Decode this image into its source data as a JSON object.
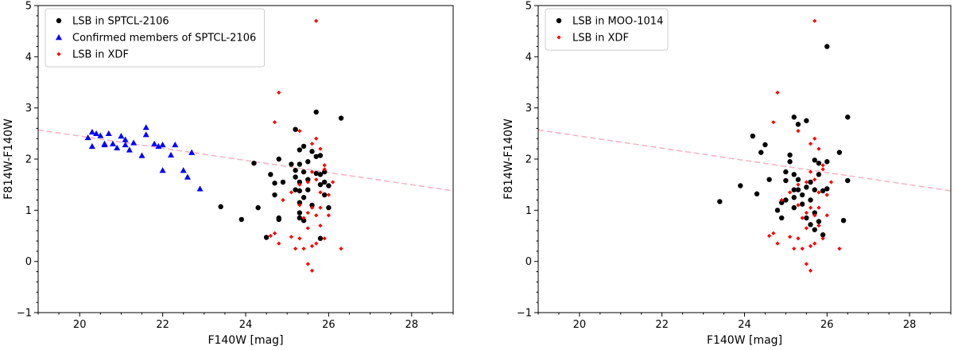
{
  "chart_data": [
    {
      "type": "scatter",
      "xlabel": "F140W [mag]",
      "ylabel": "F814W-F140W",
      "xlim": [
        19,
        29
      ],
      "ylim": [
        -1,
        5
      ],
      "xticks": [
        20,
        22,
        24,
        26,
        28
      ],
      "yticks": [
        -1,
        0,
        1,
        2,
        3,
        4,
        5
      ],
      "legend_position": "top-left",
      "reference_line": {
        "x": [
          19,
          29
        ],
        "y": [
          2.57,
          1.38
        ],
        "color": "#f4b6c2",
        "style": "dashed"
      },
      "series": [
        {
          "name": "LSB in SPTCL-2106",
          "marker": "circle",
          "color": "#000000",
          "points": [
            [
              23.4,
              1.07
            ],
            [
              23.9,
              0.82
            ],
            [
              24.2,
              1.92
            ],
            [
              24.3,
              1.05
            ],
            [
              24.5,
              0.47
            ],
            [
              24.6,
              1.7
            ],
            [
              24.7,
              1.53
            ],
            [
              24.7,
              1.3
            ],
            [
              24.8,
              0.85
            ],
            [
              24.8,
              0.82
            ],
            [
              24.8,
              2.0
            ],
            [
              24.9,
              1.55
            ],
            [
              25.1,
              1.9
            ],
            [
              25.2,
              2.58
            ],
            [
              25.2,
              1.78
            ],
            [
              25.2,
              1.65
            ],
            [
              25.2,
              1.4
            ],
            [
              25.3,
              2.18
            ],
            [
              25.3,
              1.9
            ],
            [
              25.3,
              1.55
            ],
            [
              25.3,
              1.38
            ],
            [
              25.3,
              1.15
            ],
            [
              25.3,
              0.95
            ],
            [
              25.3,
              0.85
            ],
            [
              25.4,
              2.25
            ],
            [
              25.4,
              1.75
            ],
            [
              25.4,
              1.25
            ],
            [
              25.5,
              1.95
            ],
            [
              25.5,
              1.6
            ],
            [
              25.5,
              1.4
            ],
            [
              25.6,
              2.15
            ],
            [
              25.6,
              1.1
            ],
            [
              25.7,
              2.92
            ],
            [
              25.7,
              2.05
            ],
            [
              25.7,
              1.72
            ],
            [
              25.8,
              2.07
            ],
            [
              25.8,
              1.7
            ],
            [
              25.8,
              1.5
            ],
            [
              25.8,
              0.45
            ],
            [
              25.9,
              1.75
            ],
            [
              25.9,
              1.55
            ],
            [
              26.0,
              1.05
            ],
            [
              26.0,
              1.48
            ],
            [
              26.3,
              2.8
            ],
            [
              25.4,
              0.8
            ],
            [
              25.9,
              1.3
            ]
          ]
        },
        {
          "name": "Confirmed members of SPTCL-2106",
          "marker": "triangle",
          "color": "#0000ff",
          "points": [
            [
              20.2,
              2.42
            ],
            [
              20.3,
              2.53
            ],
            [
              20.3,
              2.25
            ],
            [
              20.4,
              2.5
            ],
            [
              20.5,
              2.46
            ],
            [
              20.6,
              2.3
            ],
            [
              20.6,
              2.28
            ],
            [
              20.7,
              2.5
            ],
            [
              20.8,
              2.3
            ],
            [
              20.9,
              2.22
            ],
            [
              21.0,
              2.45
            ],
            [
              21.1,
              2.38
            ],
            [
              21.1,
              2.28
            ],
            [
              21.2,
              2.18
            ],
            [
              21.3,
              2.32
            ],
            [
              21.5,
              2.07
            ],
            [
              21.6,
              2.62
            ],
            [
              21.6,
              2.48
            ],
            [
              21.8,
              2.3
            ],
            [
              21.9,
              2.25
            ],
            [
              22.0,
              2.28
            ],
            [
              22.0,
              1.78
            ],
            [
              22.2,
              2.08
            ],
            [
              22.3,
              2.28
            ],
            [
              22.5,
              1.78
            ],
            [
              22.6,
              1.65
            ],
            [
              22.7,
              2.13
            ],
            [
              22.9,
              1.42
            ]
          ]
        },
        {
          "name": "LSB in XDF",
          "marker": "diamond",
          "color": "#ff0000",
          "points": [
            [
              25.7,
              4.7
            ],
            [
              24.8,
              3.3
            ],
            [
              24.7,
              2.72
            ],
            [
              25.3,
              2.55
            ],
            [
              25.7,
              2.4
            ],
            [
              25.8,
              2.2
            ],
            [
              25.6,
              2.3
            ],
            [
              25.9,
              1.88
            ],
            [
              25.9,
              1.8
            ],
            [
              25.6,
              1.75
            ],
            [
              25.7,
              1.6
            ],
            [
              25.5,
              1.55
            ],
            [
              25.3,
              1.5
            ],
            [
              26.1,
              1.55
            ],
            [
              25.8,
              1.35
            ],
            [
              26.0,
              1.3
            ],
            [
              25.1,
              1.35
            ],
            [
              24.9,
              1.2
            ],
            [
              25.3,
              1.1
            ],
            [
              25.6,
              1.05
            ],
            [
              25.8,
              1.05
            ],
            [
              25.5,
              0.95
            ],
            [
              25.7,
              0.9
            ],
            [
              26.0,
              0.9
            ],
            [
              25.4,
              0.85
            ],
            [
              24.7,
              0.55
            ],
            [
              24.6,
              0.5
            ],
            [
              25.1,
              0.48
            ],
            [
              25.3,
              0.45
            ],
            [
              25.9,
              0.45
            ],
            [
              24.8,
              0.35
            ],
            [
              25.7,
              0.35
            ],
            [
              25.2,
              0.25
            ],
            [
              25.4,
              0.25
            ],
            [
              26.3,
              0.25
            ],
            [
              25.6,
              0.3
            ],
            [
              25.5,
              -0.05
            ],
            [
              25.6,
              -0.18
            ],
            [
              25.8,
              0.7
            ],
            [
              25.5,
              0.65
            ]
          ]
        }
      ]
    },
    {
      "type": "scatter",
      "xlabel": "F140W [mag]",
      "ylabel": "F814W-F140W",
      "xlim": [
        19,
        29
      ],
      "ylim": [
        -1,
        5
      ],
      "xticks": [
        20,
        22,
        24,
        26,
        28
      ],
      "yticks": [
        -1,
        0,
        1,
        2,
        3,
        4,
        5
      ],
      "legend_position": "top-left",
      "reference_line": {
        "x": [
          19,
          29
        ],
        "y": [
          2.57,
          1.38
        ],
        "color": "#f4b6c2",
        "style": "dashed"
      },
      "series": [
        {
          "name": "LSB in MOO-1014",
          "marker": "circle",
          "color": "#000000",
          "points": [
            [
              23.4,
              1.17
            ],
            [
              23.9,
              1.48
            ],
            [
              24.2,
              2.45
            ],
            [
              24.3,
              1.32
            ],
            [
              24.4,
              2.13
            ],
            [
              24.5,
              2.28
            ],
            [
              24.6,
              1.6
            ],
            [
              24.8,
              1.0
            ],
            [
              24.9,
              0.85
            ],
            [
              24.9,
              1.15
            ],
            [
              25.0,
              1.58
            ],
            [
              25.0,
              1.2
            ],
            [
              25.0,
              1.75
            ],
            [
              25.1,
              2.08
            ],
            [
              25.1,
              1.95
            ],
            [
              25.2,
              2.82
            ],
            [
              25.2,
              1.7
            ],
            [
              25.2,
              1.4
            ],
            [
              25.2,
              1.25
            ],
            [
              25.2,
              1.05
            ],
            [
              25.3,
              2.68
            ],
            [
              25.3,
              1.6
            ],
            [
              25.3,
              1.4
            ],
            [
              25.4,
              1.3
            ],
            [
              25.4,
              1.12
            ],
            [
              25.5,
              2.75
            ],
            [
              25.5,
              1.45
            ],
            [
              25.5,
              0.85
            ],
            [
              25.6,
              1.55
            ],
            [
              25.6,
              1.2
            ],
            [
              25.6,
              0.72
            ],
            [
              25.7,
              1.98
            ],
            [
              25.7,
              1.4
            ],
            [
              25.7,
              0.95
            ],
            [
              25.7,
              0.62
            ],
            [
              25.8,
              1.92
            ],
            [
              25.8,
              1.7
            ],
            [
              25.8,
              0.78
            ],
            [
              25.9,
              1.38
            ],
            [
              25.9,
              0.52
            ],
            [
              26.0,
              4.2
            ],
            [
              26.0,
              1.95
            ],
            [
              26.0,
              1.42
            ],
            [
              26.3,
              2.13
            ],
            [
              26.4,
              0.8
            ],
            [
              26.5,
              2.82
            ],
            [
              26.5,
              1.58
            ]
          ]
        },
        {
          "name": "LSB in XDF",
          "marker": "diamond",
          "color": "#ff0000",
          "points": [
            [
              25.7,
              4.7
            ],
            [
              24.8,
              3.3
            ],
            [
              24.7,
              2.72
            ],
            [
              25.3,
              2.55
            ],
            [
              25.7,
              2.4
            ],
            [
              25.8,
              2.2
            ],
            [
              25.6,
              2.3
            ],
            [
              25.9,
              1.88
            ],
            [
              25.9,
              1.8
            ],
            [
              25.6,
              1.75
            ],
            [
              25.7,
              1.6
            ],
            [
              25.5,
              1.55
            ],
            [
              25.3,
              1.5
            ],
            [
              26.1,
              1.55
            ],
            [
              25.8,
              1.35
            ],
            [
              26.0,
              1.3
            ],
            [
              25.1,
              1.35
            ],
            [
              24.9,
              1.2
            ],
            [
              25.3,
              1.1
            ],
            [
              25.6,
              1.05
            ],
            [
              25.8,
              1.05
            ],
            [
              25.5,
              0.95
            ],
            [
              25.7,
              0.9
            ],
            [
              26.0,
              0.9
            ],
            [
              25.4,
              0.85
            ],
            [
              24.7,
              0.55
            ],
            [
              24.6,
              0.5
            ],
            [
              25.1,
              0.48
            ],
            [
              25.3,
              0.45
            ],
            [
              25.9,
              0.45
            ],
            [
              24.8,
              0.35
            ],
            [
              25.7,
              0.35
            ],
            [
              25.2,
              0.25
            ],
            [
              25.4,
              0.25
            ],
            [
              26.3,
              0.25
            ],
            [
              25.6,
              0.3
            ],
            [
              25.5,
              -0.05
            ],
            [
              25.6,
              -0.18
            ],
            [
              25.8,
              0.7
            ],
            [
              25.5,
              0.65
            ]
          ]
        }
      ]
    }
  ]
}
